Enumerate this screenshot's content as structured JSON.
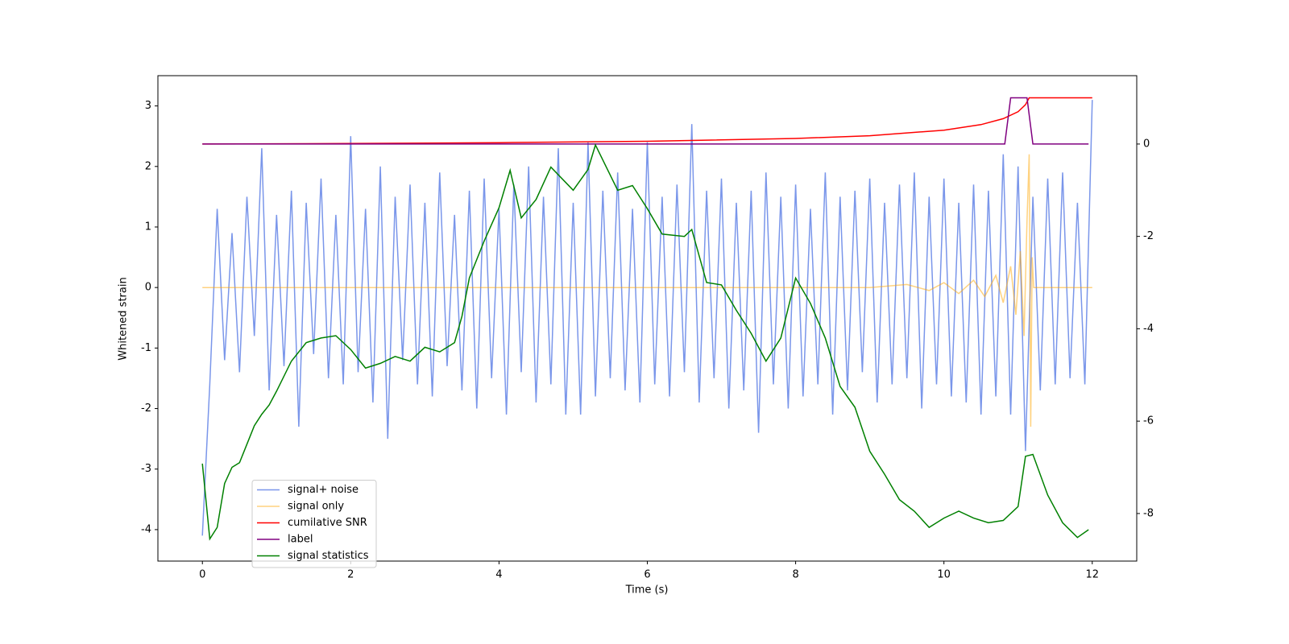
{
  "chart_data": {
    "type": "line",
    "xlabel": "Time (s)",
    "ylabel": "Whitened strain",
    "xlim": [
      -0.6,
      12.6
    ],
    "xticks": [
      0,
      2,
      4,
      6,
      8,
      10,
      12
    ],
    "ylim": [
      -4.52,
      3.5
    ],
    "yticks": [
      -4,
      -3,
      -2,
      -1,
      0,
      1,
      2,
      3
    ],
    "y2lim": [
      -9.03,
      1.48
    ],
    "y2ticks": [
      -8,
      -6,
      -4,
      -2,
      0
    ],
    "legend": "lower left",
    "series": [
      {
        "name": "signal+ noise",
        "color": "#4169e1",
        "alpha": 0.7,
        "x": [
          0,
          0.1,
          0.2,
          0.3,
          0.4,
          0.5,
          0.6,
          0.7,
          0.8,
          0.9,
          1,
          1.1,
          1.2,
          1.3,
          1.4,
          1.5,
          1.6,
          1.7,
          1.8,
          1.9,
          2,
          2.1,
          2.2,
          2.3,
          2.4,
          2.5,
          2.6,
          2.7,
          2.8,
          2.9,
          3,
          3.1,
          3.2,
          3.3,
          3.4,
          3.5,
          3.6,
          3.7,
          3.8,
          3.9,
          4,
          4.1,
          4.2,
          4.3,
          4.4,
          4.5,
          4.6,
          4.7,
          4.8,
          4.9,
          5,
          5.1,
          5.2,
          5.3,
          5.4,
          5.5,
          5.6,
          5.7,
          5.8,
          5.9,
          6,
          6.1,
          6.2,
          6.3,
          6.4,
          6.5,
          6.6,
          6.7,
          6.8,
          6.9,
          7,
          7.1,
          7.2,
          7.3,
          7.4,
          7.5,
          7.6,
          7.7,
          7.8,
          7.9,
          8,
          8.1,
          8.2,
          8.3,
          8.4,
          8.5,
          8.6,
          8.7,
          8.8,
          8.9,
          9,
          9.1,
          9.2,
          9.3,
          9.4,
          9.5,
          9.6,
          9.7,
          9.8,
          9.9,
          10,
          10.1,
          10.2,
          10.3,
          10.4,
          10.5,
          10.6,
          10.7,
          10.8,
          10.9,
          11,
          11.1,
          11.2,
          11.3,
          11.4,
          11.5,
          11.6,
          11.7,
          11.8,
          11.9,
          12
        ],
        "values": [
          -4.1,
          -1.6,
          1.3,
          -1.2,
          0.9,
          -1.4,
          1.5,
          -0.8,
          2.3,
          -1.7,
          1.2,
          -1.3,
          1.6,
          -2.3,
          1.4,
          -1.1,
          1.8,
          -1.5,
          1.2,
          -1.6,
          2.5,
          -1.4,
          1.3,
          -1.9,
          2.0,
          -2.5,
          1.5,
          -1.2,
          1.7,
          -1.6,
          1.4,
          -1.8,
          1.9,
          -1.3,
          1.2,
          -1.7,
          1.6,
          -2.0,
          1.8,
          -1.5,
          1.3,
          -2.1,
          1.7,
          -1.4,
          2.0,
          -1.9,
          1.5,
          -1.6,
          2.3,
          -2.1,
          1.4,
          -2.1,
          2.4,
          -1.8,
          1.6,
          -1.5,
          1.9,
          -1.7,
          1.3,
          -1.9,
          2.4,
          -1.6,
          1.5,
          -1.8,
          1.7,
          -1.4,
          2.7,
          -1.9,
          1.6,
          -1.5,
          1.8,
          -2.0,
          1.4,
          -1.7,
          1.6,
          -2.4,
          1.9,
          -1.6,
          1.5,
          -2.0,
          1.7,
          -1.8,
          1.3,
          -1.6,
          1.9,
          -2.1,
          1.5,
          -1.7,
          1.6,
          -1.4,
          1.8,
          -1.9,
          1.4,
          -1.6,
          1.7,
          -1.5,
          1.9,
          -2.0,
          1.5,
          -1.6,
          1.8,
          -1.8,
          1.4,
          -1.9,
          1.7,
          -2.1,
          1.6,
          -1.8,
          2.2,
          -2.1,
          2.0,
          -2.7,
          1.5,
          -1.7,
          1.8,
          -1.6,
          1.9,
          -1.5,
          1.4,
          -1.6,
          3.1
        ]
      },
      {
        "name": "signal only",
        "color": "#ffa500",
        "alpha": 0.5,
        "x": [
          0,
          9,
          9.5,
          9.8,
          10,
          10.2,
          10.4,
          10.55,
          10.7,
          10.8,
          10.9,
          10.97,
          11.03,
          11.08,
          11.12,
          11.15,
          11.17,
          11.19,
          11.21,
          12
        ],
        "values": [
          0,
          0,
          0.05,
          -0.05,
          0.08,
          -0.1,
          0.12,
          -0.15,
          0.2,
          -0.25,
          0.35,
          -0.45,
          0.6,
          -0.8,
          1.1,
          2.2,
          -2.3,
          0.5,
          0,
          0
        ]
      },
      {
        "name": "cumilative SNR",
        "color": "#ff0000",
        "axis": "y2",
        "x": [
          0,
          2,
          4,
          6,
          8,
          9,
          10,
          10.5,
          10.8,
          11,
          11.1,
          11.15,
          12
        ],
        "values": [
          0,
          0.01,
          0.03,
          0.06,
          0.12,
          0.18,
          0.3,
          0.42,
          0.55,
          0.7,
          0.85,
          1,
          1
        ]
      },
      {
        "name": "label",
        "color": "#800080",
        "axis": "y2",
        "x": [
          0,
          10.82,
          10.9,
          11.12,
          11.2,
          11.95
        ],
        "values": [
          0,
          0,
          1,
          1,
          0,
          0
        ]
      },
      {
        "name": "signal statistics",
        "color": "#008000",
        "axis": "y2",
        "x": [
          0,
          0.1,
          0.2,
          0.3,
          0.4,
          0.5,
          0.6,
          0.7,
          0.8,
          0.9,
          1,
          1.2,
          1.4,
          1.6,
          1.8,
          2,
          2.2,
          2.4,
          2.6,
          2.8,
          3,
          3.2,
          3.4,
          3.5,
          3.6,
          3.8,
          4,
          4.15,
          4.3,
          4.5,
          4.7,
          5,
          5.2,
          5.3,
          5.6,
          5.8,
          6,
          6.2,
          6.5,
          6.6,
          6.8,
          7,
          7.2,
          7.4,
          7.6,
          7.8,
          8,
          8.2,
          8.4,
          8.6,
          8.8,
          9,
          9.2,
          9.4,
          9.6,
          9.8,
          10,
          10.2,
          10.4,
          10.6,
          10.8,
          11,
          11.1,
          11.2,
          11.4,
          11.6,
          11.8,
          11.95
        ],
        "values": [
          -6.92,
          -8.55,
          -8.3,
          -7.35,
          -7.0,
          -6.9,
          -6.5,
          -6.1,
          -5.85,
          -5.65,
          -5.35,
          -4.7,
          -4.3,
          -4.2,
          -4.15,
          -4.45,
          -4.85,
          -4.75,
          -4.6,
          -4.7,
          -4.4,
          -4.5,
          -4.3,
          -3.73,
          -2.9,
          -2.1,
          -1.38,
          -0.57,
          -1.6,
          -1.2,
          -0.5,
          -1.0,
          -0.55,
          -0.02,
          -1.0,
          -0.9,
          -1.4,
          -1.95,
          -2.0,
          -1.85,
          -3.0,
          -3.05,
          -3.6,
          -4.1,
          -4.7,
          -4.2,
          -2.9,
          -3.45,
          -4.2,
          -5.25,
          -5.7,
          -6.65,
          -7.15,
          -7.7,
          -7.95,
          -8.3,
          -8.1,
          -7.95,
          -8.1,
          -8.2,
          -8.15,
          -7.85,
          -6.76,
          -6.72,
          -7.6,
          -8.2,
          -8.52,
          -8.35
        ]
      }
    ]
  }
}
